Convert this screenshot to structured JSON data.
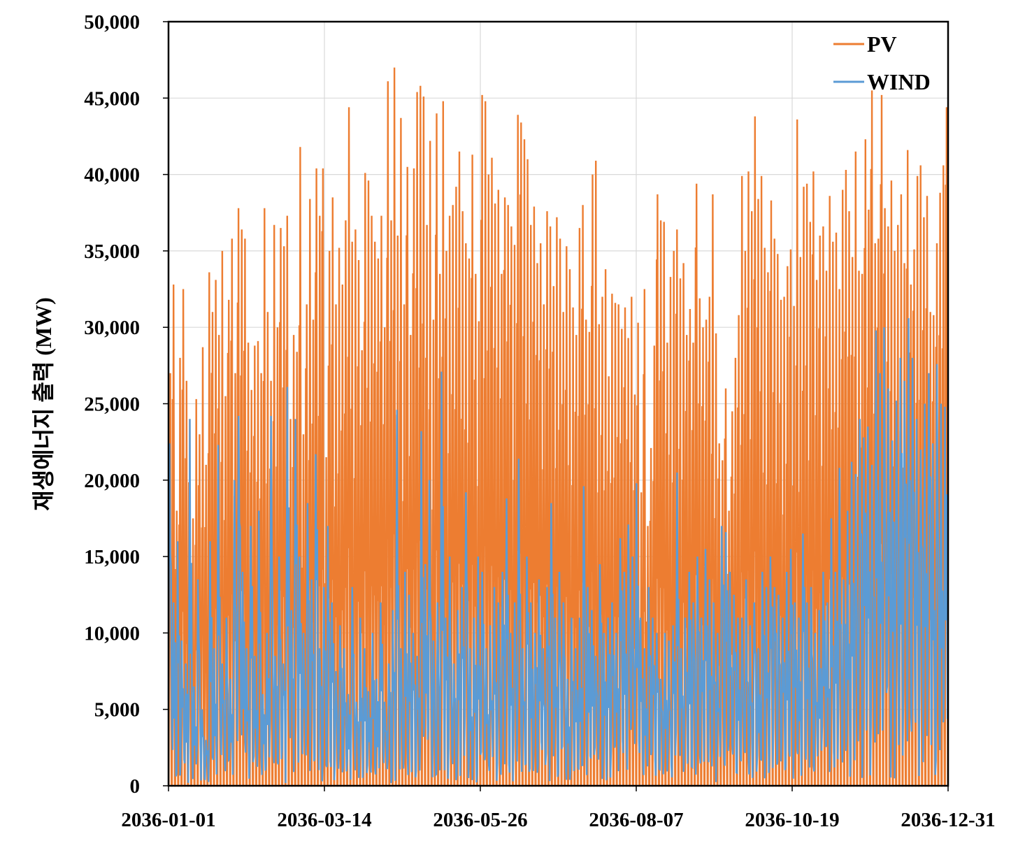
{
  "chart_data": {
    "type": "line",
    "ylabel": "재생에너지 출력 (MW)",
    "ylim": [
      0,
      50000
    ],
    "xlim": [
      "2036-01-01",
      "2036-12-31"
    ],
    "y_ticks": [
      0,
      5000,
      10000,
      15000,
      20000,
      25000,
      30000,
      35000,
      40000,
      45000,
      50000
    ],
    "y_tick_labels": [
      "0",
      "5,000",
      "10,000",
      "15,000",
      "20,000",
      "25,000",
      "30,000",
      "35,000",
      "40,000",
      "45,000",
      "50,000"
    ],
    "x_ticks": [
      "2036-01-01",
      "2036-03-14",
      "2036-05-26",
      "2036-08-07",
      "2036-10-19",
      "2036-12-31"
    ],
    "grid": true,
    "legend_position": "top-right",
    "series": [
      {
        "name": "PV",
        "color": "#ED7D31",
        "daily_peak": [
          27000,
          32800,
          18000,
          28000,
          32500,
          26500,
          24000,
          17500,
          25300,
          23000,
          28700,
          21000,
          33600,
          31000,
          33100,
          29500,
          35000,
          25500,
          31800,
          35800,
          27000,
          37800,
          36400,
          35800,
          29000,
          25900,
          28800,
          29100,
          27000,
          37800,
          31000,
          26500,
          36700,
          30000,
          36500,
          35300,
          37300,
          24000,
          29500,
          28400,
          41800,
          23000,
          31500,
          38400,
          30500,
          40400,
          37300,
          40400,
          21500,
          35000,
          38500,
          31500,
          35200,
          32800,
          37000,
          44400,
          35600,
          36400,
          34400,
          28500,
          40100,
          39600,
          37300,
          35600,
          34500,
          37300,
          30000,
          46100,
          37000,
          47000,
          36000,
          43700,
          31500,
          40500,
          29500,
          40400,
          45400,
          45800,
          45100,
          36700,
          42200,
          30500,
          44000,
          33500,
          44800,
          35000,
          37300,
          38000,
          39200,
          41500,
          37600,
          35500,
          34500,
          41300,
          33500,
          30400,
          45200,
          44800,
          40000,
          41100,
          38100,
          39000,
          33500,
          38500,
          38000,
          36600,
          35400,
          43900,
          43400,
          42300,
          41000,
          36700,
          37900,
          34200,
          35500,
          31500,
          37600,
          36600,
          32700,
          37200,
          35800,
          31000,
          35300,
          33800,
          31300,
          29500,
          36500,
          38000,
          30500,
          29700,
          40000,
          40900,
          30200,
          32000,
          33800,
          26800,
          32200,
          31600,
          31500,
          29900,
          31300,
          29300,
          32000,
          25600,
          30300,
          19200,
          32500,
          17000,
          22100,
          28800,
          38700,
          37000,
          36900,
          29000,
          33300,
          35000,
          36400,
          33200,
          34200,
          29500,
          31200,
          29000,
          39400,
          31900,
          30000,
          30500,
          32000,
          38700,
          29600,
          22400,
          21300,
          26000,
          18000,
          24500,
          28000,
          30800,
          39900,
          35000,
          40200,
          37600,
          43800,
          38400,
          39900,
          35200,
          33600,
          38300,
          35800,
          34800,
          31800,
          32000,
          34000,
          35100,
          31400,
          43600,
          34600,
          39200,
          39400,
          36900,
          40200,
          33100,
          36000,
          36600,
          33700,
          38600,
          35600,
          36200,
          32500,
          39000,
          40300,
          37600,
          34600,
          41500,
          33700,
          33500,
          42300,
          37700,
          45500,
          35500,
          35800,
          45200,
          37800,
          36600,
          39600,
          35000,
          36700,
          38700,
          34200,
          41600,
          32800,
          35100,
          39900,
          40600,
          37200,
          38600,
          31000,
          30800,
          35500,
          38800,
          40600,
          44400
        ],
        "daily_min": [
          0
        ]
      },
      {
        "name": "WIND",
        "color": "#5B9BD5",
        "daily_peak": [
          22400,
          12000,
          16000,
          9500,
          8000,
          24000,
          6500,
          13500,
          5000,
          3000,
          16000,
          9000,
          22300,
          8000,
          11000,
          7000,
          20000,
          24200,
          14000,
          9000,
          17000,
          8500,
          18000,
          6000,
          10000,
          24200,
          8500,
          15000,
          8000,
          26100,
          11500,
          24000,
          15000,
          10000,
          18500,
          13500,
          21700,
          9000,
          13000,
          17000,
          12000,
          7500,
          10500,
          9000,
          6000,
          13000,
          5500,
          11000,
          9000,
          6200,
          10000,
          7000,
          12000,
          5500,
          8000,
          11500,
          24600,
          9000,
          14000,
          12500,
          10000,
          8500,
          23200,
          14500,
          20000,
          9500,
          12000,
          27100,
          11000,
          15000,
          8000,
          11500,
          13000,
          19200,
          9000,
          11000,
          15000,
          14000,
          9000,
          10500,
          13000,
          12000,
          14000,
          18800,
          10000,
          12000,
          21400,
          9000,
          15000,
          12000,
          10000,
          13500,
          9000,
          13000,
          18500,
          11000,
          14000,
          12000,
          7000,
          11000,
          9000,
          11000,
          19600,
          13000,
          11500,
          8500,
          14500,
          10000,
          11000,
          12000,
          10000,
          16200,
          14000,
          17100,
          15000,
          19800,
          11000,
          9000,
          13000,
          11000,
          10000,
          7000,
          10000,
          9500,
          10500,
          20500,
          9000,
          11000,
          14000,
          12000,
          15000,
          11000,
          15500,
          13500,
          12000,
          10000,
          17000,
          16600,
          14000,
          12500,
          11000,
          11000,
          13500,
          10500,
          12000,
          9000,
          14000,
          13000,
          15000,
          13000,
          12500,
          11000,
          14000,
          15500,
          12000,
          11000,
          16500,
          12000,
          13000,
          10000,
          11500,
          14000,
          12000,
          17500,
          14000,
          20800,
          13500,
          18000,
          21200,
          20400,
          24000,
          22800,
          23500,
          21000,
          29800,
          27000,
          30000,
          26000,
          22600,
          25200,
          28000,
          26500,
          30600,
          28000,
          24000,
          22000,
          25000,
          27000,
          22400,
          27600,
          25000,
          24800
        ]
      }
    ]
  }
}
